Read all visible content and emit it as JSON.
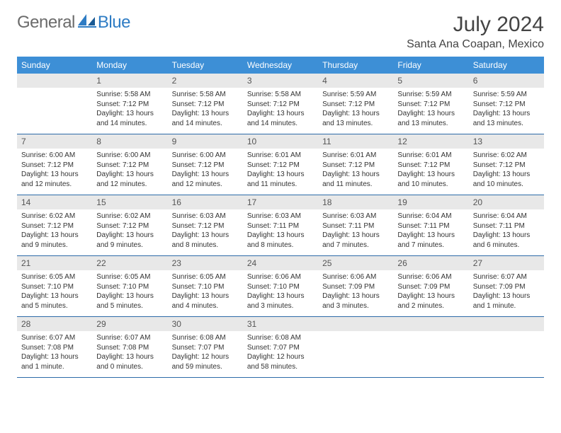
{
  "logo": {
    "text1": "General",
    "text2": "Blue"
  },
  "title": "July 2024",
  "location": "Santa Ana Coapan, Mexico",
  "colors": {
    "header_bg": "#3d8fd6",
    "header_fg": "#ffffff",
    "daynum_bg": "#e8e8e8",
    "border": "#2d6ba8",
    "logo_gray": "#6b6b6b",
    "logo_blue": "#2e7cc4"
  },
  "weekdays": [
    "Sunday",
    "Monday",
    "Tuesday",
    "Wednesday",
    "Thursday",
    "Friday",
    "Saturday"
  ],
  "weeks": [
    [
      {
        "empty": true
      },
      {
        "n": "1",
        "sr": "Sunrise: 5:58 AM",
        "ss": "Sunset: 7:12 PM",
        "dl": "Daylight: 13 hours and 14 minutes."
      },
      {
        "n": "2",
        "sr": "Sunrise: 5:58 AM",
        "ss": "Sunset: 7:12 PM",
        "dl": "Daylight: 13 hours and 14 minutes."
      },
      {
        "n": "3",
        "sr": "Sunrise: 5:58 AM",
        "ss": "Sunset: 7:12 PM",
        "dl": "Daylight: 13 hours and 14 minutes."
      },
      {
        "n": "4",
        "sr": "Sunrise: 5:59 AM",
        "ss": "Sunset: 7:12 PM",
        "dl": "Daylight: 13 hours and 13 minutes."
      },
      {
        "n": "5",
        "sr": "Sunrise: 5:59 AM",
        "ss": "Sunset: 7:12 PM",
        "dl": "Daylight: 13 hours and 13 minutes."
      },
      {
        "n": "6",
        "sr": "Sunrise: 5:59 AM",
        "ss": "Sunset: 7:12 PM",
        "dl": "Daylight: 13 hours and 13 minutes."
      }
    ],
    [
      {
        "n": "7",
        "sr": "Sunrise: 6:00 AM",
        "ss": "Sunset: 7:12 PM",
        "dl": "Daylight: 13 hours and 12 minutes."
      },
      {
        "n": "8",
        "sr": "Sunrise: 6:00 AM",
        "ss": "Sunset: 7:12 PM",
        "dl": "Daylight: 13 hours and 12 minutes."
      },
      {
        "n": "9",
        "sr": "Sunrise: 6:00 AM",
        "ss": "Sunset: 7:12 PM",
        "dl": "Daylight: 13 hours and 12 minutes."
      },
      {
        "n": "10",
        "sr": "Sunrise: 6:01 AM",
        "ss": "Sunset: 7:12 PM",
        "dl": "Daylight: 13 hours and 11 minutes."
      },
      {
        "n": "11",
        "sr": "Sunrise: 6:01 AM",
        "ss": "Sunset: 7:12 PM",
        "dl": "Daylight: 13 hours and 11 minutes."
      },
      {
        "n": "12",
        "sr": "Sunrise: 6:01 AM",
        "ss": "Sunset: 7:12 PM",
        "dl": "Daylight: 13 hours and 10 minutes."
      },
      {
        "n": "13",
        "sr": "Sunrise: 6:02 AM",
        "ss": "Sunset: 7:12 PM",
        "dl": "Daylight: 13 hours and 10 minutes."
      }
    ],
    [
      {
        "n": "14",
        "sr": "Sunrise: 6:02 AM",
        "ss": "Sunset: 7:12 PM",
        "dl": "Daylight: 13 hours and 9 minutes."
      },
      {
        "n": "15",
        "sr": "Sunrise: 6:02 AM",
        "ss": "Sunset: 7:12 PM",
        "dl": "Daylight: 13 hours and 9 minutes."
      },
      {
        "n": "16",
        "sr": "Sunrise: 6:03 AM",
        "ss": "Sunset: 7:12 PM",
        "dl": "Daylight: 13 hours and 8 minutes."
      },
      {
        "n": "17",
        "sr": "Sunrise: 6:03 AM",
        "ss": "Sunset: 7:11 PM",
        "dl": "Daylight: 13 hours and 8 minutes."
      },
      {
        "n": "18",
        "sr": "Sunrise: 6:03 AM",
        "ss": "Sunset: 7:11 PM",
        "dl": "Daylight: 13 hours and 7 minutes."
      },
      {
        "n": "19",
        "sr": "Sunrise: 6:04 AM",
        "ss": "Sunset: 7:11 PM",
        "dl": "Daylight: 13 hours and 7 minutes."
      },
      {
        "n": "20",
        "sr": "Sunrise: 6:04 AM",
        "ss": "Sunset: 7:11 PM",
        "dl": "Daylight: 13 hours and 6 minutes."
      }
    ],
    [
      {
        "n": "21",
        "sr": "Sunrise: 6:05 AM",
        "ss": "Sunset: 7:10 PM",
        "dl": "Daylight: 13 hours and 5 minutes."
      },
      {
        "n": "22",
        "sr": "Sunrise: 6:05 AM",
        "ss": "Sunset: 7:10 PM",
        "dl": "Daylight: 13 hours and 5 minutes."
      },
      {
        "n": "23",
        "sr": "Sunrise: 6:05 AM",
        "ss": "Sunset: 7:10 PM",
        "dl": "Daylight: 13 hours and 4 minutes."
      },
      {
        "n": "24",
        "sr": "Sunrise: 6:06 AM",
        "ss": "Sunset: 7:10 PM",
        "dl": "Daylight: 13 hours and 3 minutes."
      },
      {
        "n": "25",
        "sr": "Sunrise: 6:06 AM",
        "ss": "Sunset: 7:09 PM",
        "dl": "Daylight: 13 hours and 3 minutes."
      },
      {
        "n": "26",
        "sr": "Sunrise: 6:06 AM",
        "ss": "Sunset: 7:09 PM",
        "dl": "Daylight: 13 hours and 2 minutes."
      },
      {
        "n": "27",
        "sr": "Sunrise: 6:07 AM",
        "ss": "Sunset: 7:09 PM",
        "dl": "Daylight: 13 hours and 1 minute."
      }
    ],
    [
      {
        "n": "28",
        "sr": "Sunrise: 6:07 AM",
        "ss": "Sunset: 7:08 PM",
        "dl": "Daylight: 13 hours and 1 minute."
      },
      {
        "n": "29",
        "sr": "Sunrise: 6:07 AM",
        "ss": "Sunset: 7:08 PM",
        "dl": "Daylight: 13 hours and 0 minutes."
      },
      {
        "n": "30",
        "sr": "Sunrise: 6:08 AM",
        "ss": "Sunset: 7:07 PM",
        "dl": "Daylight: 12 hours and 59 minutes."
      },
      {
        "n": "31",
        "sr": "Sunrise: 6:08 AM",
        "ss": "Sunset: 7:07 PM",
        "dl": "Daylight: 12 hours and 58 minutes."
      },
      {
        "empty": true
      },
      {
        "empty": true
      },
      {
        "empty": true
      }
    ]
  ]
}
